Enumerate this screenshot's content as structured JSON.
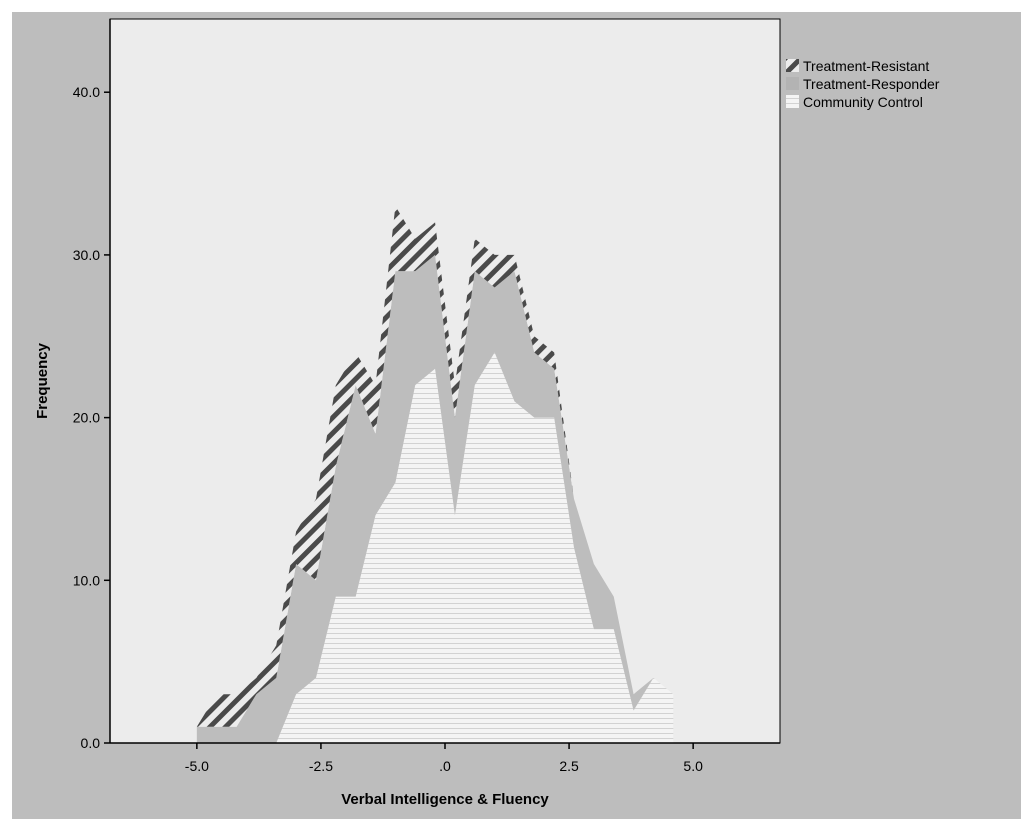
{
  "chart_data": {
    "type": "area",
    "stacked": true,
    "xlabel": "Verbal Intelligence & Fluency",
    "ylabel": "Frequency",
    "xlim": [
      -6.75,
      6.75
    ],
    "ylim": [
      0,
      44.5
    ],
    "x_ticks": [
      {
        "value": -5.0,
        "label": "-5.0"
      },
      {
        "value": -2.5,
        "label": "-2.5"
      },
      {
        "value": 0.0,
        "label": ".0"
      },
      {
        "value": 2.5,
        "label": "2.5"
      },
      {
        "value": 5.0,
        "label": "5.0"
      }
    ],
    "y_ticks": [
      {
        "value": 0,
        "label": "0.0"
      },
      {
        "value": 10,
        "label": "10.0"
      },
      {
        "value": 20,
        "label": "20.0"
      },
      {
        "value": 30,
        "label": "30.0"
      },
      {
        "value": 40,
        "label": "40.0"
      }
    ],
    "legend": {
      "placement": "top-right-outside"
    },
    "x": [
      -5.0,
      -4.6,
      -4.2,
      -3.8,
      -3.4,
      -3.0,
      -2.6,
      -2.2,
      -1.8,
      -1.4,
      -1.0,
      -0.6,
      -0.2,
      0.2,
      0.6,
      1.0,
      1.4,
      1.8,
      2.2,
      2.6,
      3.0,
      3.4,
      3.8,
      4.2,
      4.6
    ],
    "series": [
      {
        "name": "Community Control",
        "pattern": "horizontal-lines",
        "values": [
          0,
          0,
          0,
          0,
          0,
          3,
          4,
          9,
          9,
          14,
          16,
          22,
          23,
          14,
          22,
          24,
          21,
          20,
          20,
          12,
          7,
          7,
          2,
          4,
          3
        ]
      },
      {
        "name": "Treatment-Responder",
        "pattern": "solid-gray",
        "values": [
          1,
          1,
          1,
          3,
          4,
          8,
          6,
          8,
          13,
          5,
          13,
          7,
          7,
          6,
          7,
          4,
          8,
          4,
          3,
          3,
          4,
          2,
          1,
          0,
          0
        ]
      },
      {
        "name": "Treatment-Resistant",
        "pattern": "diagonal-hatch",
        "values": [
          0,
          2,
          2,
          1,
          2,
          2,
          5,
          5,
          2,
          3,
          4,
          2,
          2,
          2,
          2,
          2,
          1,
          1,
          1,
          0,
          0,
          0,
          0,
          0,
          0
        ]
      }
    ],
    "colors": {
      "figure_background": "#bdbdbd",
      "plot_background": "#ececec",
      "responder_fill": "#bdbdbd",
      "control_fill": "#f2f2f2",
      "control_lines": "#d4d4d4",
      "hatch": "#4a4a4a",
      "axis": "#000000"
    }
  }
}
